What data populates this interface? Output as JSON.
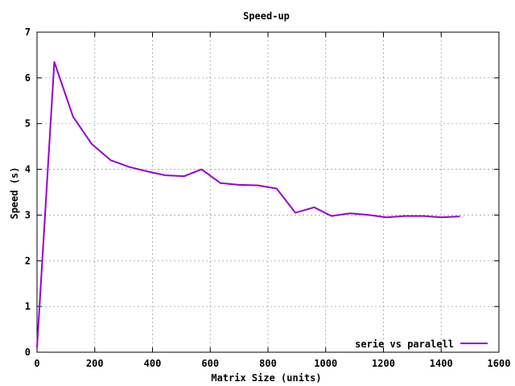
{
  "chart_data": {
    "type": "line",
    "title": "Speed-up",
    "xlabel": "Matrix Size (units)",
    "ylabel": "Speed (s)",
    "xlim": [
      0,
      1600
    ],
    "ylim": [
      0,
      7
    ],
    "x_ticks": [
      0,
      200,
      400,
      600,
      800,
      1000,
      1200,
      1400,
      1600
    ],
    "y_ticks": [
      0,
      1,
      2,
      3,
      4,
      5,
      6,
      7
    ],
    "grid": true,
    "legend_position": "bottom-right",
    "series": [
      {
        "name": "serie vs paralell",
        "color": "#9400d3",
        "x": [
          0,
          60,
          125,
          190,
          255,
          320,
          385,
          445,
          510,
          570,
          635,
          700,
          765,
          830,
          895,
          960,
          1020,
          1085,
          1150,
          1210,
          1275,
          1340,
          1400,
          1465
        ],
        "y": [
          0.1,
          6.35,
          5.15,
          4.55,
          4.2,
          4.05,
          3.95,
          3.87,
          3.85,
          4.0,
          3.7,
          3.66,
          3.65,
          3.58,
          3.05,
          3.17,
          2.98,
          3.04,
          3.0,
          2.95,
          2.98,
          2.98,
          2.95,
          2.97
        ]
      }
    ]
  }
}
